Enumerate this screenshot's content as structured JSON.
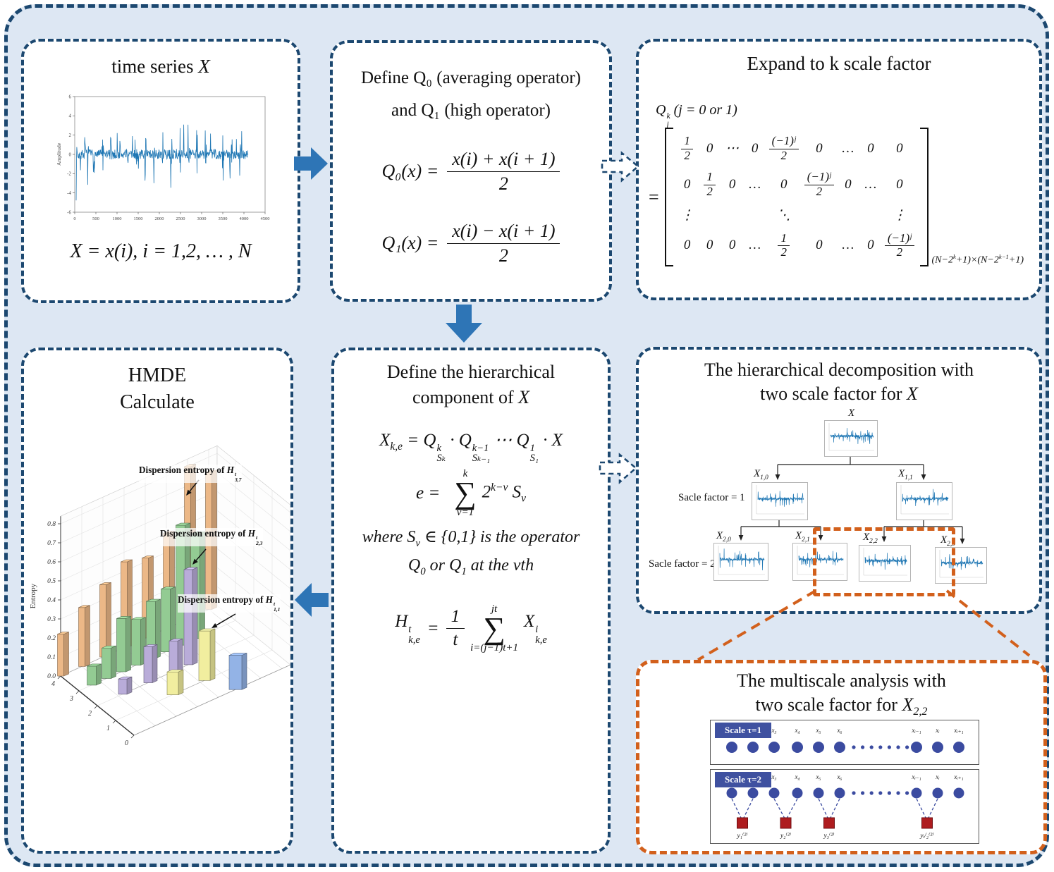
{
  "colors": {
    "background": "#dde7f3",
    "panel_border_blue": "#1c4870",
    "panel_bg": "#ffffff",
    "solid_arrow_blue": "#2e75b6",
    "highlight_orange": "#d2601c",
    "waveform_blue": "#1f77b4",
    "scale_header_bg": "#3f51a0",
    "node_circle_blue": "#3b4ba0",
    "sample_square_red": "#ae1c1f"
  },
  "p1": {
    "title": "time series ",
    "title_var": "X",
    "plot": {
      "ylabel": "Amplitude",
      "yticks": [
        "6",
        "4",
        "2",
        "0",
        "-2",
        "-4",
        "-6"
      ],
      "xticks": [
        "0",
        "500",
        "1000",
        "1500",
        "2000",
        "2500",
        "3000",
        "3500",
        "4000",
        "4500"
      ]
    },
    "formula": "X = x(i), i = 1,2, … , N"
  },
  "p2": {
    "def_line1": "Define Q₀ (averaging operator)",
    "def_line2": "and Q₁ (high operator)",
    "eq1": {
      "lhs": "Q₀(x) =",
      "num": "x(i) + x(i + 1)",
      "den": "2"
    },
    "eq2": {
      "lhs": "Q₁(x) =",
      "num": "x(i) − x(i + 1)",
      "den": "2"
    }
  },
  "p3": {
    "title": "Expand to k scale factor",
    "operator": [
      {
        "t": "Q",
        "sup": "k",
        "sub": "j"
      },
      {
        "t": " (j = 0 or 1)"
      }
    ],
    "equals": "=",
    "matrix": [
      [
        "1|2",
        "0",
        "⋯",
        "0",
        "(−1)ʲ|2",
        "0",
        "…",
        "0",
        "0"
      ],
      [
        "0",
        "1|2",
        "0",
        "…",
        "0",
        "(−1)ʲ|2",
        "0",
        "…",
        "0"
      ],
      [
        "⋮",
        "",
        "",
        "",
        "⋱",
        "",
        "",
        "",
        "⋮"
      ],
      [
        "0",
        "0",
        "0",
        "…",
        "1|2",
        "0",
        "…",
        "0",
        "(−1)ʲ|2"
      ]
    ],
    "dimension": [
      {
        "t": "(N−2",
        "sup": "k"
      },
      {
        "t": "+1)×(N−2",
        "sup": "k−1"
      },
      {
        "t": "+1)"
      }
    ]
  },
  "p4": {
    "title1": "HMDE",
    "title2": "Calculate",
    "ann": [
      {
        "prefix": "Dispersion entropy of ",
        "base": "H",
        "sup": "t",
        "sub": "3,7"
      },
      {
        "prefix": "Dispersion entropy of ",
        "base": "H",
        "sup": "t",
        "sub": "2,3"
      },
      {
        "prefix": "Dispersion entropy of ",
        "base": "H",
        "sup": "t",
        "sub": "1,1"
      }
    ]
  },
  "p5": {
    "title1": "Define  the hierarchical",
    "title2": "component of ",
    "title2_var": "X",
    "f1": [
      {
        "t": "X",
        "sub": "k,e"
      },
      {
        "t": " = "
      },
      {
        "t": "Q",
        "sup": "k",
        "sub": "Sₖ"
      },
      {
        "t": " · "
      },
      {
        "t": "Q",
        "sup": "k−1",
        "sub": "Sₖ₋₁"
      },
      {
        "t": " ⋯ "
      },
      {
        "t": "Q",
        "sup": "1",
        "sub": "S₁"
      },
      {
        "t": " · X"
      }
    ],
    "f2": {
      "lhs": "e =",
      "sum_top": "k",
      "sum_bot": "v=1",
      "rhs": [
        {
          "t": "2",
          "sup": "k−v"
        },
        {
          "t": " S",
          "sub": "v"
        }
      ]
    },
    "f3": [
      {
        "t": "where S",
        "sub": "v"
      },
      {
        "t": " ∈ {0,1} is the operator"
      }
    ],
    "f4": [
      {
        "t": "Q",
        "sub": "0"
      },
      {
        "t": " or Q",
        "sub": "1"
      },
      {
        "t": " at the vth"
      }
    ],
    "f5": {
      "lhs": [
        {
          "t": "H",
          "sup": "t",
          "sub": "k,e"
        }
      ],
      "eq": "=",
      "frac": "1|t",
      "sum_top": "jt",
      "sum_bot": "i=(j−1)t+1",
      "rhs": [
        {
          "t": "X",
          "sup": "i",
          "sub": "k,e"
        }
      ]
    }
  },
  "p6": {
    "title1": "The hierarchical decomposition with",
    "title2": "two scale factor for ",
    "title2_var": "X",
    "root": "X",
    "level1": [
      {
        "t": "X",
        "sub": "1,0"
      },
      {
        "t": "X",
        "sub": "1,1"
      }
    ],
    "level2": [
      {
        "t": "X",
        "sub": "2,0"
      },
      {
        "t": "X",
        "sub": "2,1"
      },
      {
        "t": "X",
        "sub": "2,2"
      },
      {
        "t": "X",
        "sub": "2,3"
      }
    ],
    "row1_label": "Sacle factor = 1",
    "row2_label": "Sacle factor = 2"
  },
  "p7": {
    "title1": "The multiscale analysis with",
    "title2": "two scale factor for ",
    "title2_var": "X",
    "title2_sub": "2,2",
    "scale1": "Scale τ=1",
    "scale2": "Scale τ=2",
    "xlabels": [
      "x₁",
      "x₂",
      "x₃",
      "x₄",
      "x₅",
      "x₆",
      "xᵢ₋₁",
      "xᵢ",
      "xᵢ₊₁"
    ],
    "ylabels": [
      "y₁⁽²⁾",
      "y₂⁽²⁾",
      "y₃⁽²⁾",
      "yᵢ/₂⁽²⁾"
    ]
  },
  "chart_data": [
    {
      "type": "line",
      "title": "time series X",
      "ylabel": "Amplitude",
      "ylim": [
        -6,
        6
      ],
      "xlim": [
        0,
        4500
      ],
      "xticks": [
        0,
        500,
        1000,
        1500,
        2000,
        2500,
        3000,
        3500,
        4000,
        4500
      ],
      "yticks": [
        6,
        4,
        2,
        0,
        -2,
        -4,
        -6
      ],
      "description": "impulsive vibration waveform with periodic bursts reaching about ±4 to ±5, signal ends near x=4100"
    },
    {
      "type": "bar",
      "subtype": "3d-bar",
      "title": "HMDE Calculate",
      "zlabel": "Entropy",
      "zlim": [
        0,
        0.8
      ],
      "zticks": [
        0.0,
        0.1,
        0.2,
        0.3,
        0.4,
        0.5,
        0.6,
        0.7,
        0.8
      ],
      "depth_ticks": [
        "4",
        "3",
        "2",
        "1",
        "0"
      ],
      "annotations": [
        "Dispersion entropy of H^t_3,7",
        "Dispersion entropy of H^t_2,3",
        "Dispersion entropy of H^t_1,1"
      ],
      "series": [
        {
          "name": "layer-3 components (orange)",
          "color": "#ecb887",
          "positions": [
            0,
            1,
            2,
            3,
            4,
            5,
            6,
            7
          ],
          "values": [
            0.22,
            0.31,
            0.38,
            0.45,
            0.42,
            0.5,
            0.8,
            0.72
          ]
        },
        {
          "name": "layer-2 components (green)",
          "color": "#93cb93",
          "positions": [
            0.6,
            1.3,
            2.0,
            2.7,
            3.4,
            4.1,
            4.8,
            5.5
          ],
          "values": [
            0.1,
            0.16,
            0.28,
            0.24,
            0.3,
            0.33,
            0.63,
            0.55
          ]
        },
        {
          "name": "layer-1 components (purple)",
          "color": "#b9acd9",
          "positions": [
            1.2,
            2.4,
            3.6,
            4.3
          ],
          "values": [
            0.08,
            0.19,
            0.16,
            0.5
          ]
        },
        {
          "name": "layer-0 components (yellow)",
          "color": "#f1ee9f",
          "positions": [
            2.7,
            4.2
          ],
          "values": [
            0.12,
            0.26
          ]
        },
        {
          "name": "base component (blue)",
          "color": "#93b3e6",
          "positions": [
            4.8
          ],
          "values": [
            0.18
          ]
        }
      ]
    }
  ]
}
